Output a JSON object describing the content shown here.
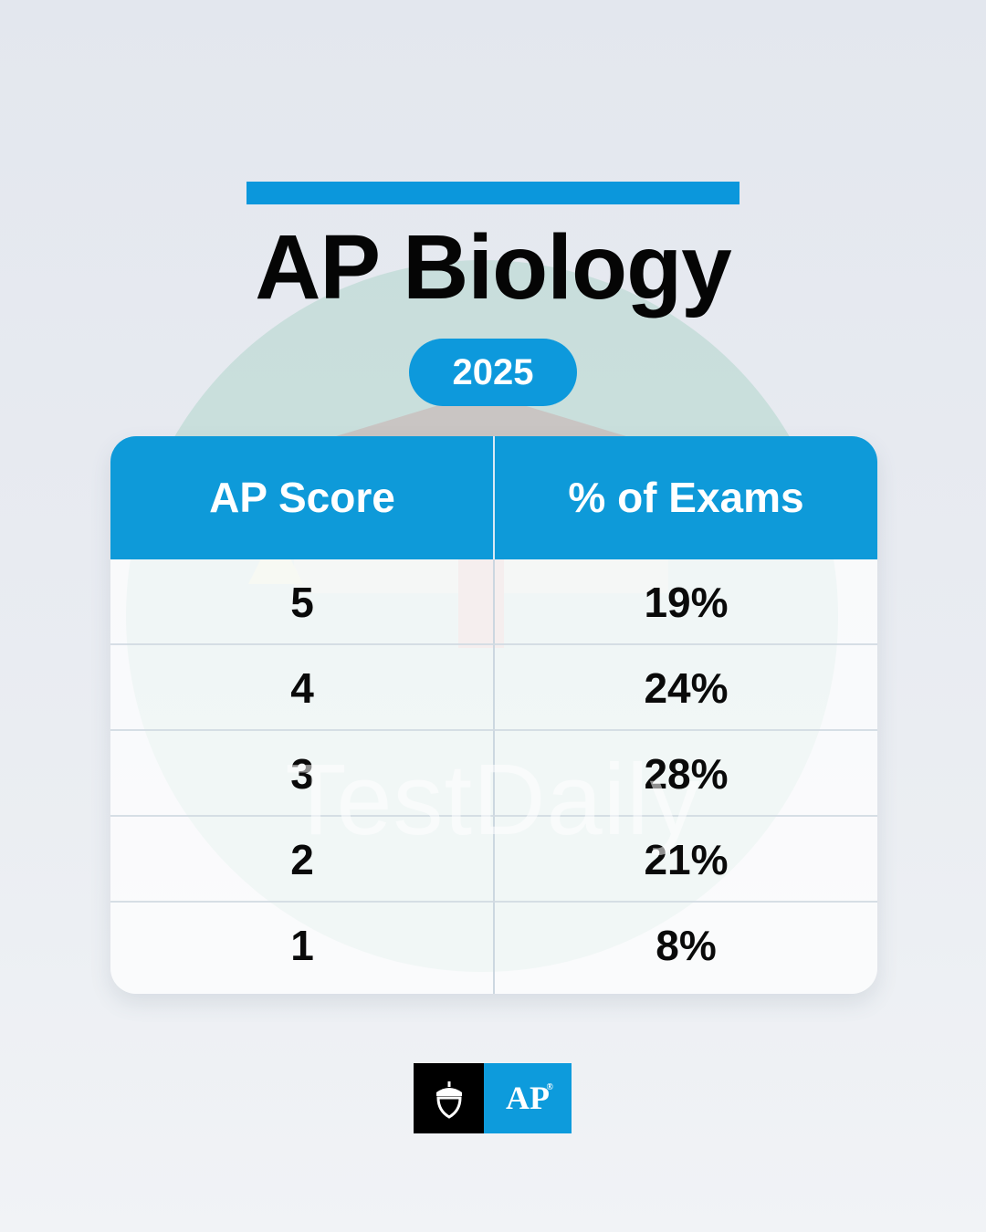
{
  "title": "AP Biology",
  "year": "2025",
  "table": {
    "headers": [
      "AP Score",
      "% of Exams"
    ],
    "rows": [
      {
        "score": "5",
        "percent": "19%"
      },
      {
        "score": "4",
        "percent": "24%"
      },
      {
        "score": "3",
        "percent": "28%"
      },
      {
        "score": "2",
        "percent": "21%"
      },
      {
        "score": "1",
        "percent": "8%"
      }
    ]
  },
  "watermark": "TestDaily",
  "logo": {
    "icon": "acorn-icon",
    "text": "AP",
    "registered": "®"
  },
  "colors": {
    "accent": "#0e9ad9",
    "title": "#050505"
  }
}
